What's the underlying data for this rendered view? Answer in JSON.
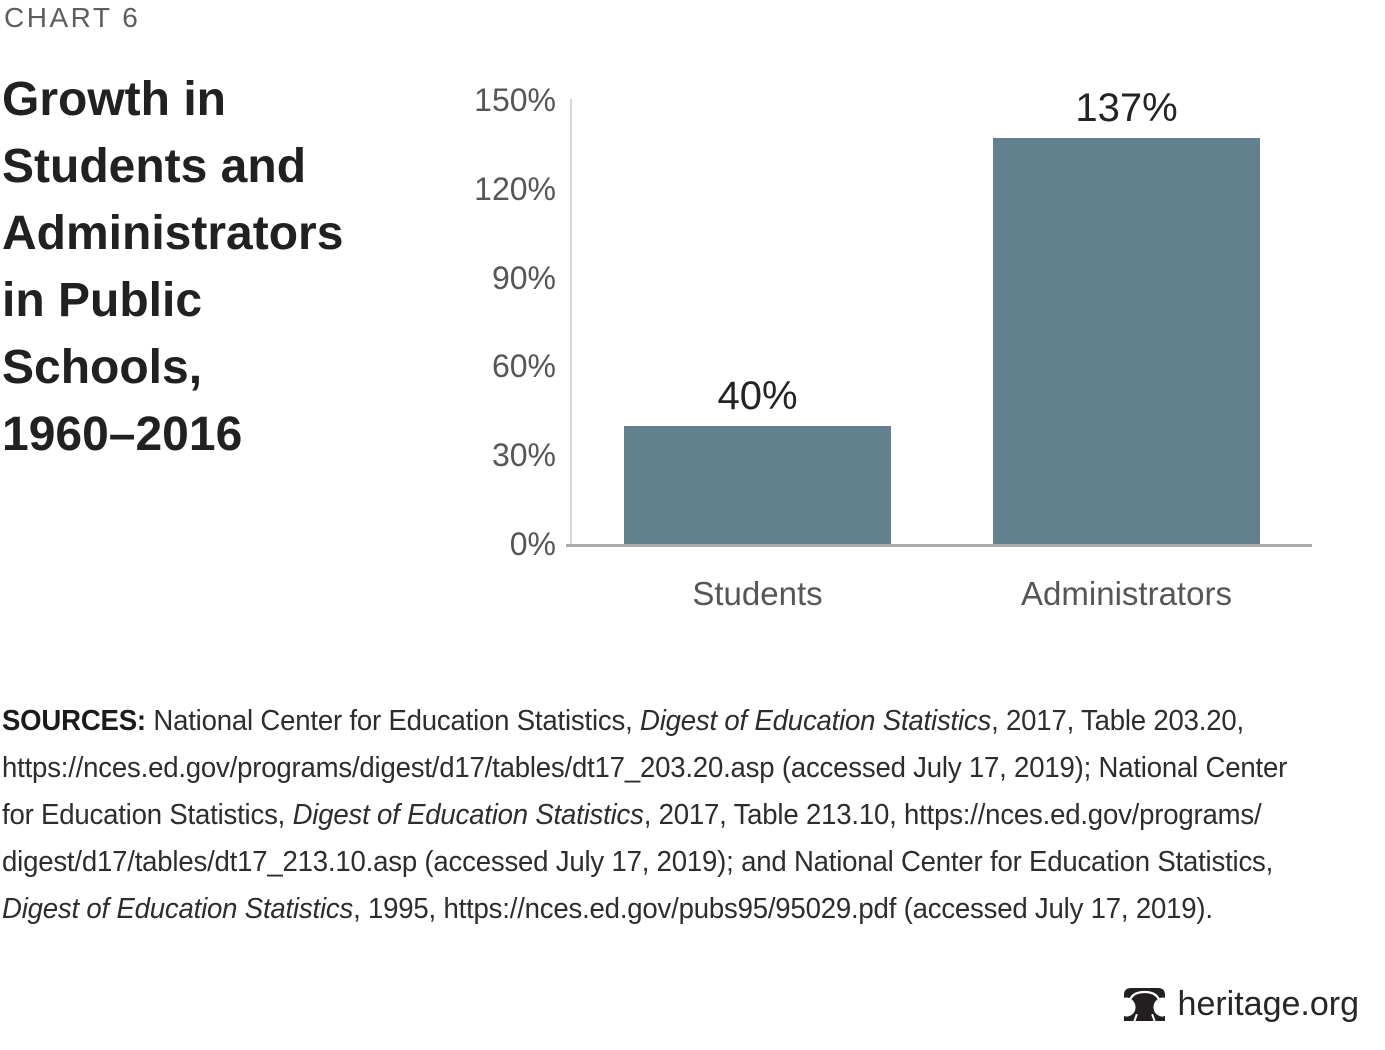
{
  "page": {
    "kicker": "CHART 6",
    "background": "#ffffff"
  },
  "chart_data": {
    "type": "bar",
    "title": "Growth in Students and Administrators in Public Schools, 1960–2016",
    "title_lines": [
      "Growth in",
      "Students and",
      "Administrators",
      "in Public",
      "Schools,",
      "1960–2016"
    ],
    "categories": [
      "Students",
      "Administrators"
    ],
    "values": [
      40,
      137
    ],
    "value_labels": [
      "40%",
      "137%"
    ],
    "xlabel": "",
    "ylabel": "",
    "ylim": [
      0,
      150
    ],
    "yticks": [
      0,
      30,
      60,
      90,
      120,
      150
    ],
    "ytick_labels": [
      "0%",
      "30%",
      "60%",
      "90%",
      "120%",
      "150%"
    ],
    "grid": false,
    "legend": "none",
    "bar_color": "#63808F",
    "axis_line_color": "#d8d8d8",
    "baseline_color": "#a8aaad"
  },
  "sources": {
    "lines": [
      [
        {
          "t": "SOURCES:",
          "b": true
        },
        {
          "t": " National Center for Education Statistics, "
        },
        {
          "t": "Digest of Education Statistics",
          "i": true
        },
        {
          "t": ", 2017, Table 203.20,"
        }
      ],
      [
        {
          "t": "https://nces.ed.gov/programs/digest/d17/tables/dt17_203.20.asp (accessed July 17, 2019); National Center"
        }
      ],
      [
        {
          "t": "for Education Statistics, "
        },
        {
          "t": "Digest of Education Statistics",
          "i": true
        },
        {
          "t": ", 2017, Table 213.10, https://nces.ed.gov/programs/"
        }
      ],
      [
        {
          "t": "digest/d17/tables/dt17_213.10.asp (accessed July 17, 2019); and National Center for Education Statistics,"
        }
      ],
      [
        {
          "t": "Digest of Education Statistics",
          "i": true
        },
        {
          "t": ", 1995, https://nces.ed.gov/pubs95/95029.pdf (accessed July 17, 2019)."
        }
      ]
    ]
  },
  "footer": {
    "logo_text": "heritage.org",
    "logo_icon": "liberty-bell-icon",
    "logo_color": "#231f20"
  }
}
